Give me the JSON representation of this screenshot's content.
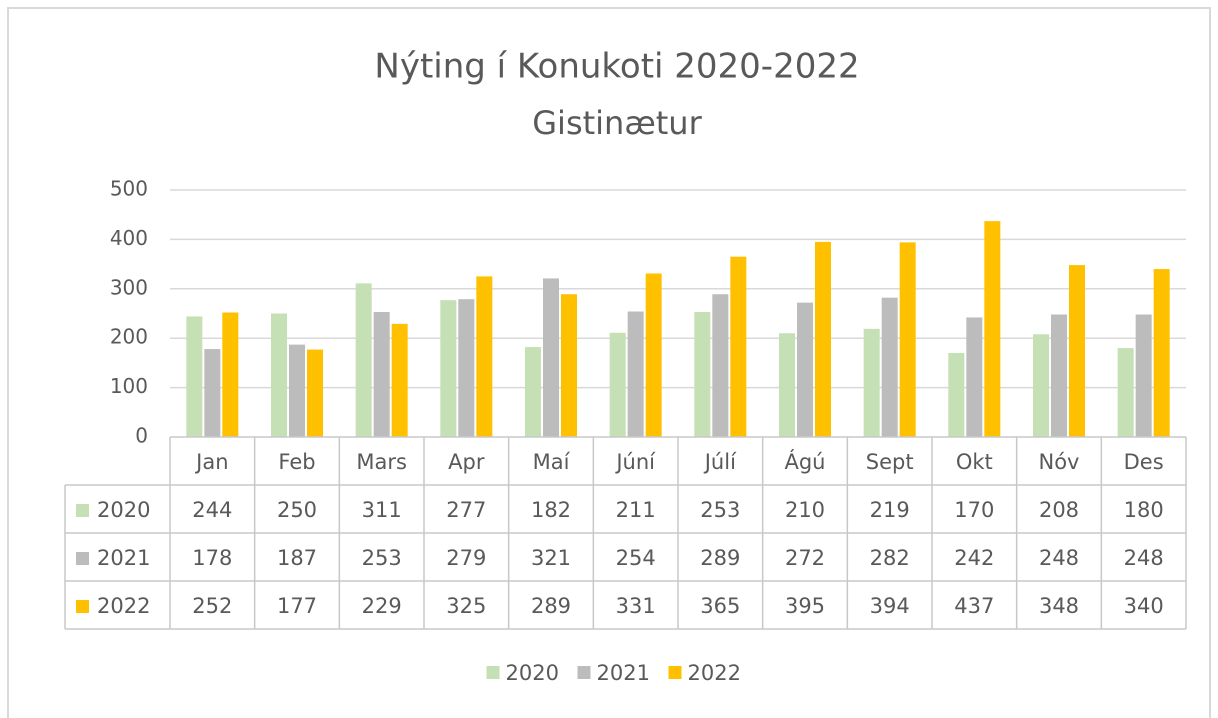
{
  "chart_data": {
    "type": "bar",
    "title": "Nýting í Konukoti 2020-2022",
    "subtitle": "Gistinætur",
    "categories": [
      "Jan",
      "Feb",
      "Mars",
      "Apr",
      "Maí",
      "Júní",
      "Júlí",
      "Ágú",
      "Sept",
      "Okt",
      "Nóv",
      "Des"
    ],
    "series": [
      {
        "name": "2020",
        "color": "#c5e0b4",
        "values": [
          244,
          250,
          311,
          277,
          182,
          211,
          253,
          210,
          219,
          170,
          208,
          180
        ]
      },
      {
        "name": "2021",
        "color": "#bcbcbc",
        "values": [
          178,
          187,
          253,
          279,
          321,
          254,
          289,
          272,
          282,
          242,
          248,
          248
        ]
      },
      {
        "name": "2022",
        "color": "#ffc000",
        "values": [
          252,
          177,
          229,
          325,
          289,
          331,
          365,
          395,
          394,
          437,
          348,
          340
        ]
      }
    ],
    "ylim": [
      0,
      500
    ],
    "yticks": [
      0,
      100,
      200,
      300,
      400,
      500
    ],
    "grid": true,
    "legend": "bottom"
  }
}
